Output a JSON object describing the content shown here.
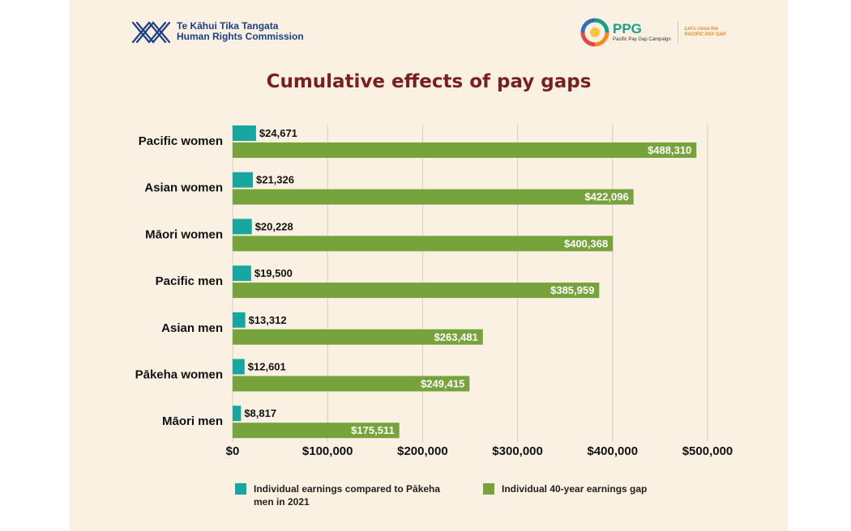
{
  "header": {
    "hrc_line1": "Te Kāhui Tika Tangata",
    "hrc_line2": "Human Rights Commission",
    "ppg_abbr": "PPG",
    "ppg_name": "Pacific Pay Gap Campaign",
    "ppg_tag_line1": "Let's close the",
    "ppg_tag_line2": "PACIFIC PAY GAP"
  },
  "colors": {
    "background": "#fbf1e3",
    "title": "#7a1f1f",
    "annual": "#17a6a0",
    "lifetime": "#77a33c",
    "hrc_brand": "#1d3f86",
    "ppg_brand": "#17a089",
    "ppg_tag": "#f28a25"
  },
  "chart_data": {
    "type": "bar",
    "orientation": "horizontal",
    "title": "Cumulative effects of pay gaps",
    "categories": [
      "Pacific women",
      "Asian women",
      "Māori women",
      "Pacific men",
      "Asian men",
      "Pākeha women",
      "Māori men"
    ],
    "series": [
      {
        "name": "Individual earnings compared to Pākeha men in 2021",
        "color": "#17a6a0",
        "values": [
          24671,
          21326,
          20228,
          19500,
          13312,
          12601,
          8817
        ],
        "labels": [
          "$24,671",
          "$21,326",
          "$20,228",
          "$19,500",
          "$13,312",
          "$12,601",
          "$8,817"
        ]
      },
      {
        "name": "Individual 40-year earnings gap",
        "color": "#77a33c",
        "values": [
          488310,
          422096,
          400368,
          385959,
          263481,
          249415,
          175511
        ],
        "labels": [
          "$488,310",
          "$422,096",
          "$400,368",
          "$385,959",
          "$263,481",
          "$249,415",
          "$175,511"
        ]
      }
    ],
    "xlim": [
      0,
      500000
    ],
    "xticks": [
      0,
      100000,
      200000,
      300000,
      400000,
      500000
    ],
    "xtick_labels": [
      "$0",
      "$100,000",
      "$200,000",
      "$300,000",
      "$400,000",
      "$500,000"
    ],
    "grid": "vertical",
    "legend_position": "bottom"
  }
}
